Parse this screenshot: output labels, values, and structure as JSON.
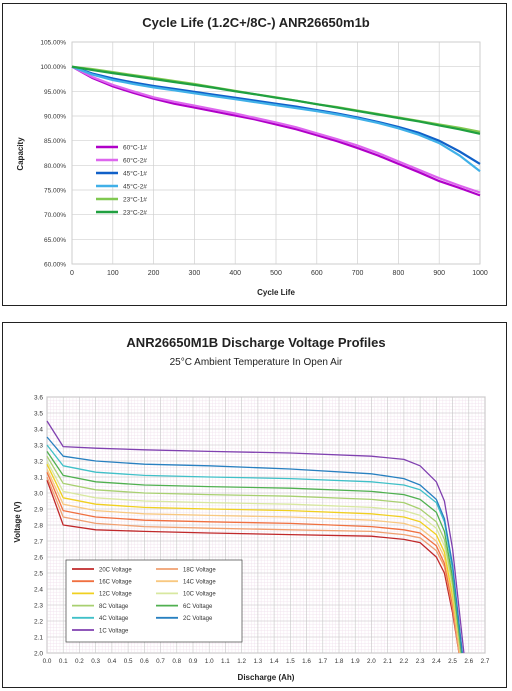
{
  "chart_data": [
    {
      "type": "line",
      "title": "Cycle Life (1.2C+/8C-) ANR26650m1b",
      "xlabel": "Cycle Life",
      "ylabel": "Capacity",
      "xlim": [
        0,
        1000
      ],
      "ylim": [
        60,
        105
      ],
      "x_ticks": [
        "0",
        "100",
        "200",
        "300",
        "400",
        "500",
        "600",
        "700",
        "800",
        "900",
        "1000"
      ],
      "y_ticks": [
        "60.00%",
        "65.00%",
        "70.00%",
        "75.00%",
        "80.00%",
        "85.00%",
        "90.00%",
        "95.00%",
        "100.00%",
        "105.00%"
      ],
      "grid": true,
      "legend_position": "left-bottom",
      "series": [
        {
          "name": "60°C-1#",
          "color": "#b000c8",
          "x": [
            0,
            50,
            100,
            150,
            200,
            250,
            300,
            350,
            400,
            450,
            500,
            550,
            600,
            650,
            700,
            750,
            800,
            850,
            900,
            950,
            1000
          ],
          "values": [
            100,
            97.7,
            96,
            94.7,
            93.5,
            92.5,
            91.7,
            90.9,
            90.1,
            89.3,
            88.3,
            87.3,
            86.1,
            84.9,
            83.5,
            82,
            80.3,
            78.6,
            76.8,
            75.4,
            73.9
          ]
        },
        {
          "name": "60°C-2#",
          "color": "#dd66ee",
          "x": [
            0,
            50,
            100,
            150,
            200,
            250,
            300,
            350,
            400,
            450,
            500,
            550,
            600,
            650,
            700,
            750,
            800,
            850,
            900,
            950,
            1000
          ],
          "values": [
            100,
            97.9,
            96.3,
            95,
            93.8,
            92.9,
            92.1,
            91.3,
            90.5,
            89.6,
            88.7,
            87.7,
            86.5,
            85.3,
            84,
            82.5,
            80.8,
            79.1,
            77.4,
            75.9,
            74.5
          ]
        },
        {
          "name": "45°C-1#",
          "color": "#1060c8",
          "x": [
            0,
            50,
            100,
            150,
            200,
            250,
            300,
            350,
            400,
            450,
            500,
            550,
            600,
            650,
            700,
            750,
            800,
            850,
            900,
            950,
            1000
          ],
          "values": [
            100,
            98.6,
            97.6,
            96.8,
            96.1,
            95.5,
            94.9,
            94.3,
            93.7,
            93.1,
            92.5,
            91.9,
            91.2,
            90.5,
            89.7,
            88.8,
            87.8,
            86.6,
            85,
            82.8,
            80.3
          ]
        },
        {
          "name": "45°C-2#",
          "color": "#40b0e8",
          "x": [
            0,
            50,
            100,
            150,
            200,
            250,
            300,
            350,
            400,
            450,
            500,
            550,
            600,
            650,
            700,
            750,
            800,
            850,
            900,
            950,
            1000
          ],
          "values": [
            100,
            98.4,
            97.3,
            96.5,
            95.8,
            95.2,
            94.6,
            94,
            93.4,
            92.8,
            92.2,
            91.6,
            91,
            90.3,
            89.5,
            88.6,
            87.5,
            86.2,
            84.5,
            82,
            78.8
          ]
        },
        {
          "name": "23°C-1#",
          "color": "#80c850",
          "x": [
            0,
            50,
            100,
            150,
            200,
            250,
            300,
            350,
            400,
            450,
            500,
            550,
            600,
            650,
            700,
            750,
            800,
            850,
            900,
            950,
            1000
          ],
          "values": [
            100,
            99.5,
            98.9,
            98.3,
            97.7,
            97.1,
            96.5,
            95.8,
            95.1,
            94.4,
            93.8,
            93.1,
            92.4,
            91.8,
            91.1,
            90.4,
            89.7,
            89,
            88.3,
            87.6,
            86.8
          ]
        },
        {
          "name": "23°C-2#",
          "color": "#20a040",
          "x": [
            0,
            50,
            100,
            150,
            200,
            250,
            300,
            350,
            400,
            450,
            500,
            550,
            600,
            650,
            700,
            750,
            800,
            850,
            900,
            950,
            1000
          ],
          "values": [
            100,
            99.3,
            98.7,
            98.1,
            97.5,
            96.9,
            96.3,
            95.7,
            95,
            94.4,
            93.7,
            93.1,
            92.4,
            91.7,
            91,
            90.3,
            89.6,
            88.9,
            88.1,
            87.3,
            86.4
          ]
        }
      ]
    },
    {
      "type": "line",
      "title": "ANR26650M1B Discharge Voltage Profiles",
      "subtitle": "25°C Ambient Temperature In Open Air",
      "xlabel": "Discharge (Ah)",
      "ylabel": "Voltage (V)",
      "xlim": [
        0,
        2.7
      ],
      "ylim": [
        2.0,
        3.6
      ],
      "x_ticks": [
        "0.0",
        "0.1",
        "0.2",
        "0.3",
        "0.4",
        "0.5",
        "0.6",
        "0.7",
        "0.8",
        "0.9",
        "1.0",
        "1.1",
        "1.2",
        "1.3",
        "1.4",
        "1.5",
        "1.6",
        "1.7",
        "1.8",
        "1.9",
        "2.0",
        "2.1",
        "2.2",
        "2.3",
        "2.4",
        "2.5",
        "2.6",
        "2.7"
      ],
      "y_ticks": [
        "2.0",
        "2.1",
        "2.2",
        "2.3",
        "2.4",
        "2.5",
        "2.6",
        "2.7",
        "2.8",
        "2.9",
        "3.0",
        "3.1",
        "3.2",
        "3.3",
        "3.4",
        "3.5",
        "3.6"
      ],
      "grid": true,
      "legend_position": "bottom-left",
      "series": [
        {
          "name": "20C Voltage",
          "color": "#c0282a",
          "x": [
            0,
            0.1,
            0.3,
            0.6,
            1.0,
            1.5,
            2.0,
            2.2,
            2.3,
            2.4,
            2.45,
            2.5,
            2.54
          ],
          "values": [
            3.08,
            2.8,
            2.77,
            2.76,
            2.75,
            2.74,
            2.73,
            2.71,
            2.69,
            2.6,
            2.5,
            2.25,
            2.0
          ]
        },
        {
          "name": "18C Voltage",
          "color": "#f0a070",
          "x": [
            0,
            0.1,
            0.3,
            0.6,
            1.0,
            1.5,
            2.0,
            2.2,
            2.3,
            2.4,
            2.45,
            2.5,
            2.54
          ],
          "values": [
            3.1,
            2.85,
            2.81,
            2.79,
            2.78,
            2.77,
            2.76,
            2.74,
            2.72,
            2.64,
            2.54,
            2.28,
            2.0
          ]
        },
        {
          "name": "16C Voltage",
          "color": "#f07040",
          "x": [
            0,
            0.1,
            0.3,
            0.6,
            1.0,
            1.5,
            2.0,
            2.2,
            2.3,
            2.4,
            2.45,
            2.5,
            2.545
          ],
          "values": [
            3.13,
            2.89,
            2.85,
            2.83,
            2.82,
            2.81,
            2.79,
            2.77,
            2.75,
            2.67,
            2.56,
            2.3,
            2.0
          ]
        },
        {
          "name": "14C Voltage",
          "color": "#f8c880",
          "x": [
            0,
            0.1,
            0.3,
            0.6,
            1.0,
            1.5,
            2.0,
            2.2,
            2.3,
            2.4,
            2.45,
            2.5,
            2.545
          ],
          "values": [
            3.15,
            2.93,
            2.89,
            2.87,
            2.86,
            2.85,
            2.83,
            2.81,
            2.78,
            2.7,
            2.6,
            2.33,
            2.0
          ]
        },
        {
          "name": "12C Voltage",
          "color": "#f0d020",
          "x": [
            0,
            0.1,
            0.3,
            0.6,
            1.0,
            1.5,
            2.0,
            2.2,
            2.3,
            2.4,
            2.45,
            2.5,
            2.55
          ],
          "values": [
            3.18,
            2.97,
            2.93,
            2.91,
            2.9,
            2.89,
            2.87,
            2.85,
            2.82,
            2.74,
            2.63,
            2.36,
            2.0
          ]
        },
        {
          "name": "10C Voltage",
          "color": "#d8e8a0",
          "x": [
            0,
            0.1,
            0.3,
            0.6,
            1.0,
            1.5,
            2.0,
            2.2,
            2.3,
            2.4,
            2.45,
            2.5,
            2.55
          ],
          "values": [
            3.2,
            3.01,
            2.97,
            2.95,
            2.94,
            2.93,
            2.91,
            2.89,
            2.86,
            2.78,
            2.67,
            2.4,
            2.0
          ]
        },
        {
          "name": "8C Voltage",
          "color": "#a8d070",
          "x": [
            0,
            0.1,
            0.3,
            0.6,
            1.0,
            1.5,
            2.0,
            2.2,
            2.3,
            2.4,
            2.45,
            2.5,
            2.55
          ],
          "values": [
            3.23,
            3.06,
            3.02,
            3.0,
            2.99,
            2.98,
            2.96,
            2.94,
            2.9,
            2.82,
            2.71,
            2.43,
            2.0
          ]
        },
        {
          "name": "6C Voltage",
          "color": "#50b050",
          "x": [
            0,
            0.1,
            0.3,
            0.6,
            1.0,
            1.5,
            2.0,
            2.2,
            2.3,
            2.4,
            2.45,
            2.5,
            2.555
          ],
          "values": [
            3.26,
            3.11,
            3.07,
            3.05,
            3.04,
            3.03,
            3.01,
            2.99,
            2.96,
            2.88,
            2.76,
            2.47,
            2.0
          ]
        },
        {
          "name": "4C Voltage",
          "color": "#40c0c8",
          "x": [
            0,
            0.1,
            0.3,
            0.6,
            1.0,
            1.5,
            2.0,
            2.2,
            2.3,
            2.4,
            2.45,
            2.5,
            2.56
          ],
          "values": [
            3.3,
            3.17,
            3.13,
            3.11,
            3.1,
            3.09,
            3.07,
            3.05,
            3.02,
            2.94,
            2.82,
            2.52,
            2.0
          ]
        },
        {
          "name": "2C Voltage",
          "color": "#2880c0",
          "x": [
            0,
            0.1,
            0.3,
            0.6,
            1.0,
            1.5,
            2.0,
            2.2,
            2.3,
            2.4,
            2.45,
            2.5,
            2.56
          ],
          "values": [
            3.35,
            3.23,
            3.2,
            3.18,
            3.17,
            3.15,
            3.12,
            3.09,
            3.05,
            2.96,
            2.84,
            2.55,
            2.0
          ]
        },
        {
          "name": "1C Voltage",
          "color": "#8040b0",
          "x": [
            0,
            0.1,
            0.3,
            0.6,
            1.0,
            1.5,
            2.0,
            2.2,
            2.3,
            2.4,
            2.45,
            2.5,
            2.57
          ],
          "values": [
            3.45,
            3.29,
            3.28,
            3.27,
            3.26,
            3.25,
            3.23,
            3.21,
            3.17,
            3.07,
            2.95,
            2.65,
            2.0
          ]
        }
      ]
    }
  ]
}
